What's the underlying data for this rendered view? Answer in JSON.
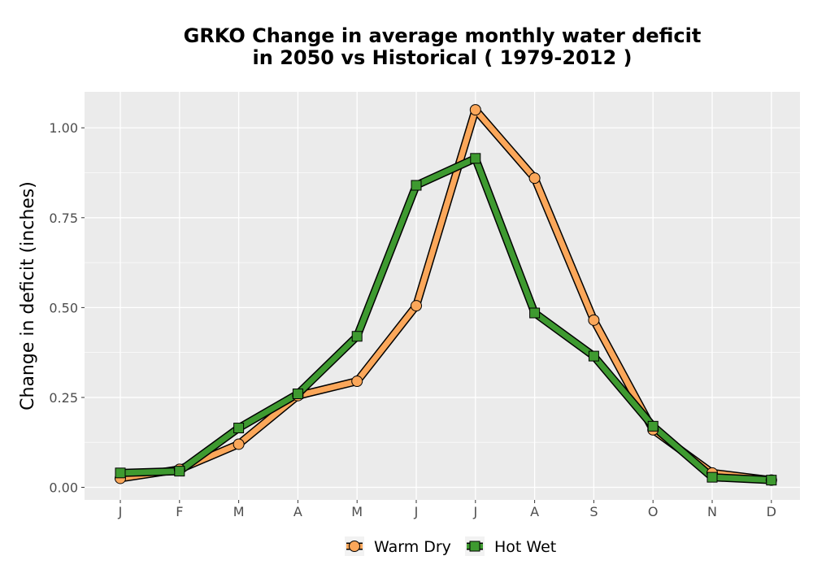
{
  "chart_data": {
    "type": "line",
    "title_lines": [
      "GRKO  Change in average monthly water deficit",
      "in 2050 vs Historical ( 1979-2012 )"
    ],
    "xlabel": "",
    "ylabel": "Change in deficit (inches)",
    "categories": [
      "J",
      "F",
      "M",
      "A",
      "M",
      "J",
      "J",
      "A",
      "S",
      "O",
      "N",
      "D"
    ],
    "ylim": [
      -0.035,
      1.1
    ],
    "yticks": [
      0.0,
      0.25,
      0.5,
      0.75,
      1.0
    ],
    "ytick_labels": [
      "0.00",
      "0.25",
      "0.50",
      "0.75",
      "1.00"
    ],
    "grid": true,
    "legend_position": "bottom",
    "series": [
      {
        "name": "Warm Dry",
        "color": "#FBA75A",
        "marker": "circle",
        "values": [
          0.025,
          0.05,
          0.12,
          0.255,
          0.295,
          0.505,
          1.05,
          0.86,
          0.465,
          0.16,
          0.04,
          0.02
        ]
      },
      {
        "name": "Hot Wet",
        "color": "#3E9A30",
        "marker": "square",
        "values": [
          0.04,
          0.045,
          0.165,
          0.26,
          0.42,
          0.84,
          0.915,
          0.485,
          0.365,
          0.17,
          0.028,
          0.02
        ]
      }
    ]
  }
}
